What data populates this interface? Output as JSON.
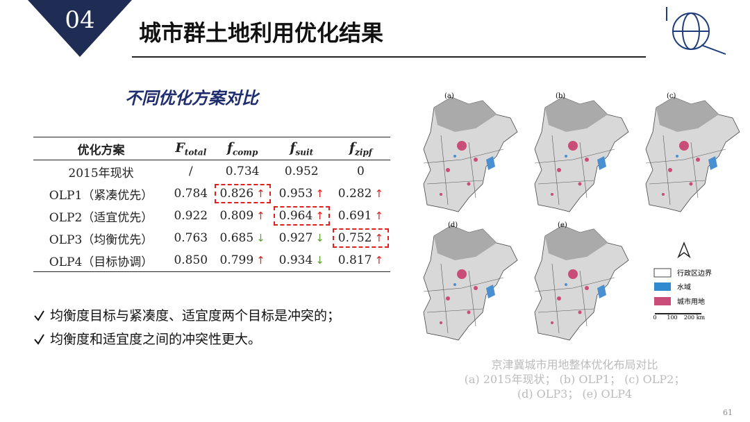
{
  "header": {
    "number": "04",
    "title": "城市群土地利用优化结果"
  },
  "subtitle": "不同优化方案对比",
  "table": {
    "columns": [
      "优化方案",
      {
        "symbol": "F",
        "sub": "total"
      },
      {
        "symbol": "f",
        "sub": "comp"
      },
      {
        "symbol": "f",
        "sub": "suit"
      },
      {
        "symbol": "f",
        "sub": "zipf"
      }
    ],
    "rows": [
      [
        "2015年现状",
        "/",
        "0.734",
        "0.952",
        "0"
      ],
      [
        "OLP1（紧凑优先）",
        "0.784",
        "0.826",
        "0.953",
        "0.282"
      ],
      [
        "OLP2（适宜优先）",
        "0.922",
        "0.809",
        "0.964",
        "0.691"
      ],
      [
        "OLP3（均衡优先）",
        "0.763",
        "0.685",
        "0.927",
        "0.752"
      ],
      [
        "OLP4（目标协调）",
        "0.850",
        "0.799",
        "0.934",
        "0.817"
      ]
    ]
  },
  "bullets": [
    "均衡度目标与紧凑度、适宜度两个目标是冲突的；",
    "均衡度和适宜度之间的冲突性更大。"
  ],
  "maps": {
    "panels": [
      "(a)",
      "(b)",
      "(c)",
      "(d)",
      "(e)"
    ],
    "legend": [
      "行政区边界",
      "水域",
      "城市用地"
    ],
    "scale": [
      "0",
      "100",
      "200 km"
    ]
  },
  "caption": [
    "京津冀城市用地整体优化布局对比",
    "(a) 2015年现状； (b) OLP1； (c) OLP2；",
    "(d) OLP3； (e) OLP4"
  ],
  "page_number": "61"
}
